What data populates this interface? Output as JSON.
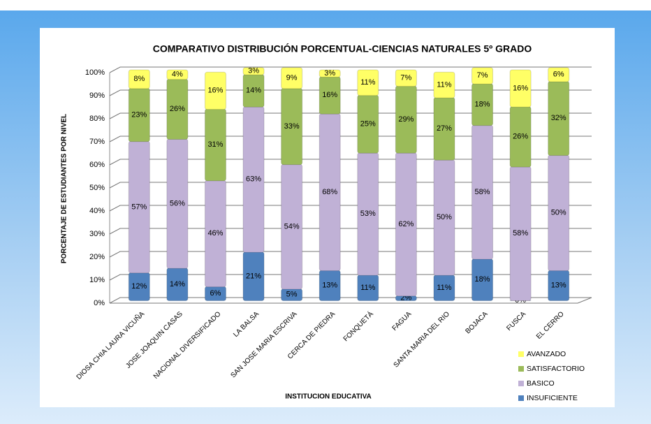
{
  "chart_data": {
    "type": "stacked_bar",
    "title": "COMPARATIVO DISTRIBUCIÓN PORCENTUAL-CIENCIAS NATURALES 5º GRADO",
    "x_label": "INSTITUCION EDUCATIVA",
    "y_label": "PORCENTAJE DE ESTUDIANTES POR NIVEL",
    "categories": [
      "DIOSA CHIA LAURA VICUÑA",
      "JOSE JOAQUIN CASAS",
      "NACIONAL DIVERSIFICADO",
      "LA BALSA",
      "SAN JOSE MARIA ESCRIVA",
      "CERCA DE PIEDRA",
      "FONQUETÁ",
      "FAGUA",
      "SANTA MARIA DEL RIO",
      "BOJACA",
      "FUSCA",
      "EL CERRO"
    ],
    "series": [
      {
        "name": "INSUFICIENTE",
        "color": "#4f81bd",
        "values": [
          12,
          14,
          6,
          21,
          5,
          13,
          11,
          2,
          11,
          18,
          0,
          13
        ],
        "value_labels": [
          "12%",
          "14%",
          "6%",
          "21%",
          "5%",
          "13%",
          "11%",
          "2%",
          "11%",
          "18%",
          "0%",
          "13%"
        ]
      },
      {
        "name": "BASICO",
        "color": "#c0b1d6",
        "values": [
          57,
          56,
          46,
          63,
          54,
          68,
          53,
          62,
          50,
          58,
          58,
          50
        ],
        "value_labels": [
          "57%",
          "56%",
          "46%",
          "63%",
          "54%",
          "68%",
          "53%",
          "62%",
          "50%",
          "58%",
          "58%",
          "50%"
        ]
      },
      {
        "name": "SATISFACTORIO",
        "color": "#9bbb59",
        "values": [
          23,
          26,
          31,
          14,
          33,
          16,
          25,
          29,
          27,
          18,
          26,
          32
        ],
        "value_labels": [
          "23%",
          "26%",
          "31%",
          "14%",
          "33%",
          "16%",
          "25%",
          "29%",
          "27%",
          "18%",
          "26%",
          "32%"
        ]
      },
      {
        "name": "AVANZADO",
        "color": "#ffff66",
        "values": [
          8,
          4,
          16,
          3,
          9,
          3,
          11,
          7,
          11,
          7,
          16,
          6
        ],
        "value_labels": [
          "8%",
          "4%",
          "16%",
          "3%",
          "9%",
          "3%",
          "11%",
          "7%",
          "11%",
          "7%",
          "16%",
          "6%"
        ]
      }
    ],
    "ylim": [
      0,
      100
    ],
    "yticks": [
      {
        "value": 0,
        "label": "0%"
      },
      {
        "value": 10,
        "label": "10%"
      },
      {
        "value": 20,
        "label": "20%"
      },
      {
        "value": 30,
        "label": "30%"
      },
      {
        "value": 40,
        "label": "40%"
      },
      {
        "value": 50,
        "label": "50%"
      },
      {
        "value": 60,
        "label": "60%"
      },
      {
        "value": 70,
        "label": "70%"
      },
      {
        "value": 80,
        "label": "80%"
      },
      {
        "value": 90,
        "label": "90%"
      },
      {
        "value": 100,
        "label": "100%"
      }
    ],
    "grid": true,
    "legend": "lower right"
  }
}
